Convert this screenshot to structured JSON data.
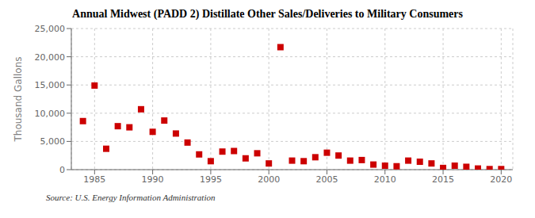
{
  "chart_data": {
    "type": "scatter",
    "title": "Annual Midwest (PADD 2) Distillate Other Sales/Deliveries to Military Consumers",
    "ylabel": "Thousand Gallons",
    "source": "Source: U.S. Energy Information Administration",
    "x": [
      1984,
      1985,
      1986,
      1987,
      1988,
      1989,
      1990,
      1991,
      1992,
      1993,
      1994,
      1995,
      1996,
      1997,
      1998,
      1999,
      2000,
      2001,
      2002,
      2003,
      2004,
      2005,
      2006,
      2007,
      2008,
      2009,
      2010,
      2011,
      2012,
      2013,
      2014,
      2015,
      2016,
      2017,
      2018,
      2019,
      2020
    ],
    "values": [
      8600,
      14900,
      3700,
      7700,
      7500,
      10700,
      6700,
      8700,
      6400,
      4800,
      2700,
      1500,
      3200,
      3300,
      2000,
      2900,
      1100,
      21700,
      1600,
      1500,
      2200,
      3000,
      2500,
      1600,
      1700,
      900,
      700,
      600,
      1600,
      1400,
      1100,
      300,
      700,
      500,
      200,
      100,
      100
    ],
    "color": "#cc0000",
    "marker": "square",
    "xlim": [
      1983,
      2021
    ],
    "ylim": [
      0,
      25000
    ],
    "xticks": [
      1985,
      1990,
      1995,
      2000,
      2005,
      2010,
      2015,
      2020
    ],
    "yticks": [
      0,
      {
        "value": 5000,
        "label": "5,000"
      },
      {
        "value": 10000,
        "label": "10,000"
      },
      {
        "value": 15000,
        "label": "15,000"
      },
      {
        "value": 20000,
        "label": "20,000"
      },
      {
        "value": 25000,
        "label": "25,000"
      }
    ],
    "grid": true
  }
}
